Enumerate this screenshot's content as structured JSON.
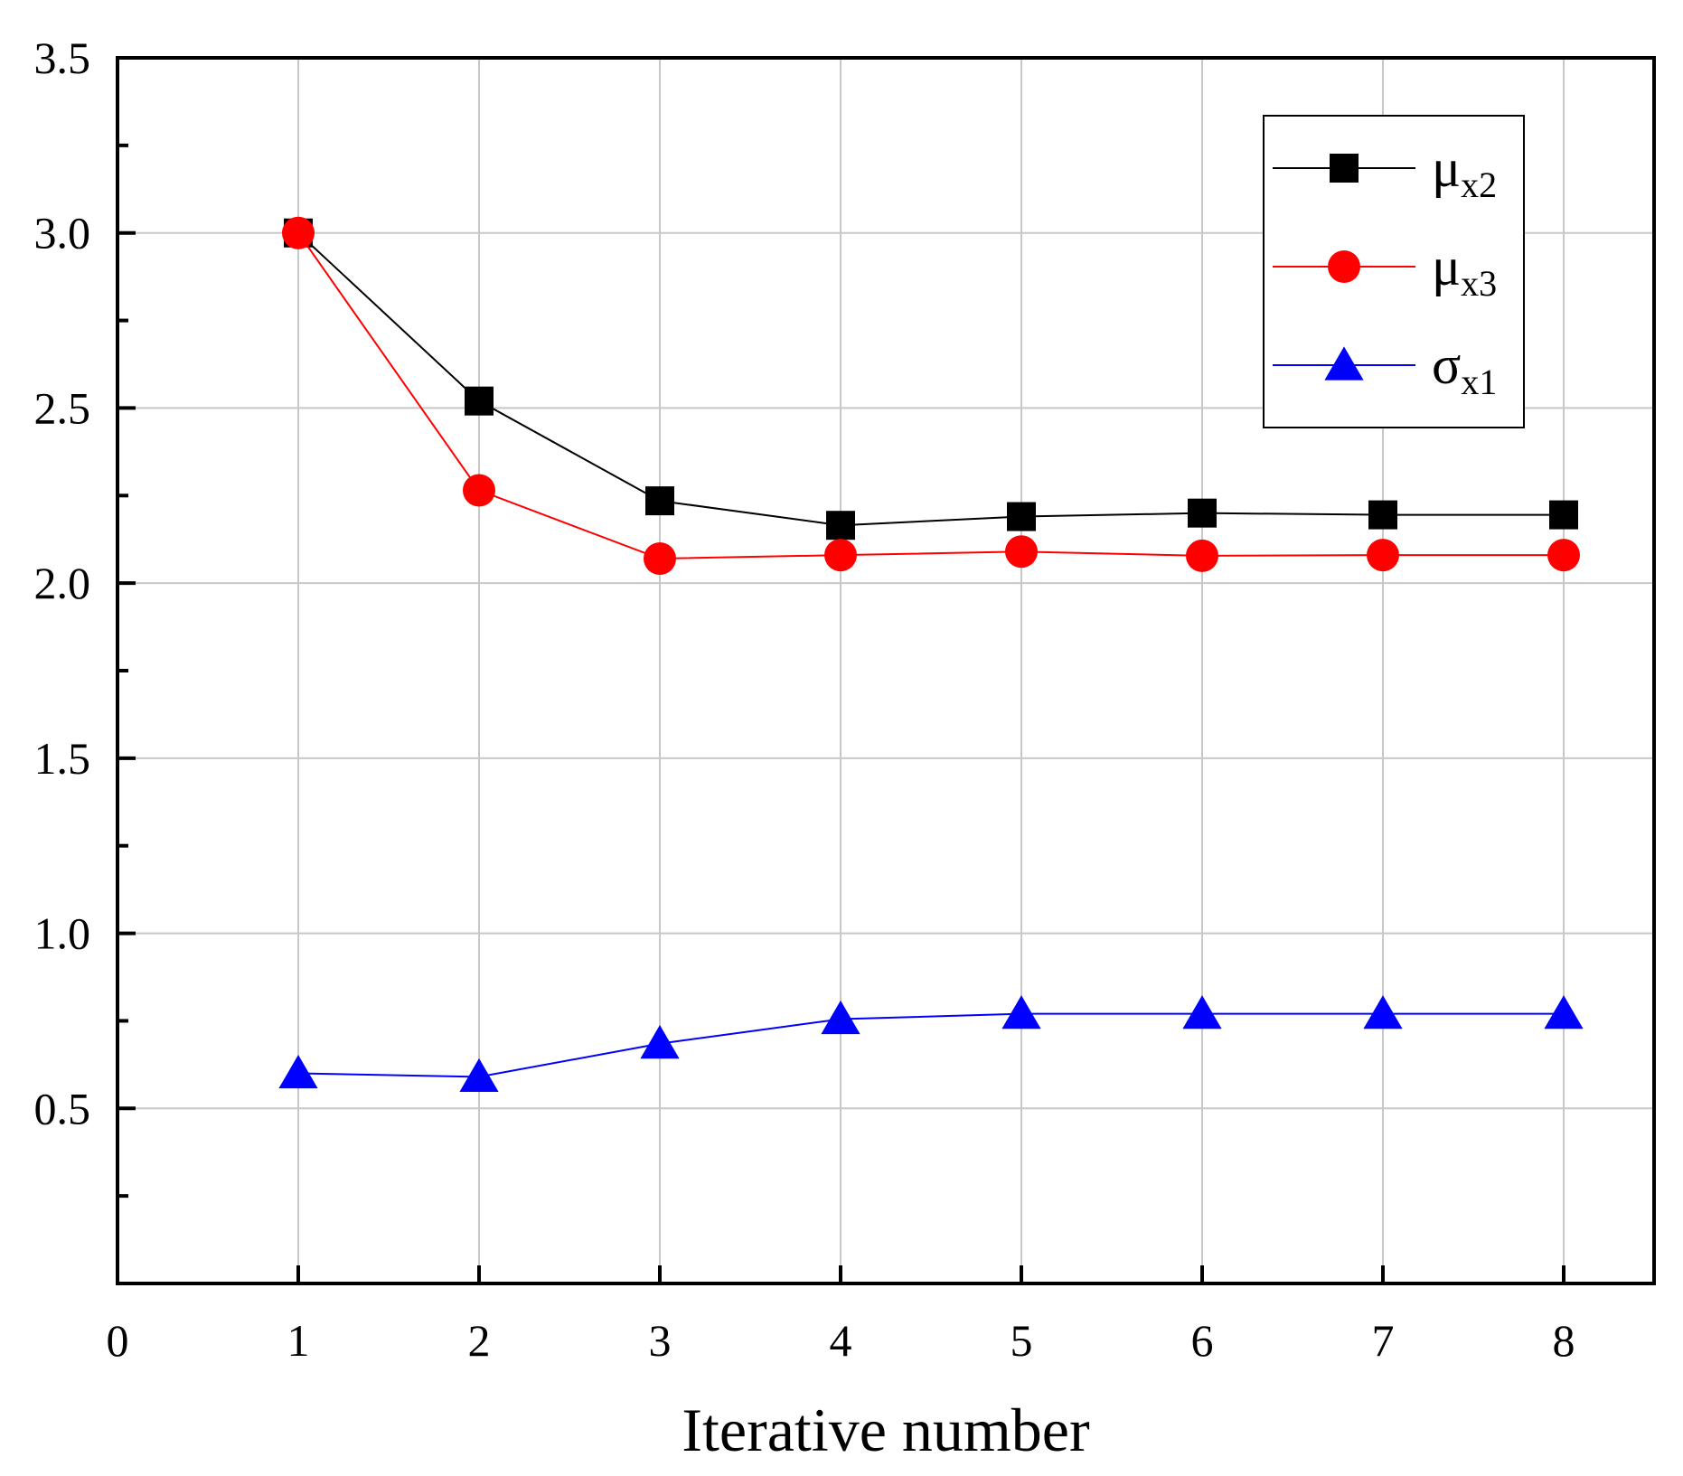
{
  "chart_data": {
    "type": "line",
    "title": "",
    "xlabel": "Iterative number",
    "ylabel": "",
    "xlim": [
      0,
      8.5
    ],
    "ylim": [
      0.0,
      3.5
    ],
    "x_ticks": [
      0,
      1,
      2,
      3,
      4,
      5,
      6,
      7,
      8
    ],
    "x_tick_labels": [
      "0",
      "1",
      "2",
      "3",
      "4",
      "5",
      "6",
      "7",
      "8"
    ],
    "y_ticks": [
      0.5,
      1.0,
      1.5,
      2.0,
      2.5,
      3.0,
      3.5
    ],
    "y_tick_labels": [
      "0.5",
      "1.0",
      "1.5",
      "2.0",
      "2.5",
      "3.0",
      "3.5"
    ],
    "y_minor_ticks": [
      0.25,
      0.75,
      1.25,
      1.75,
      2.25,
      2.75,
      3.25
    ],
    "grid": true,
    "legend_position": "top-right",
    "x": [
      1,
      2,
      3,
      4,
      5,
      6,
      7,
      8
    ],
    "series": [
      {
        "name": "μx2",
        "symbol": "μ",
        "subscript": "x2",
        "color": "#000000",
        "marker": "square",
        "values": [
          3.0,
          2.52,
          2.235,
          2.165,
          2.19,
          2.2,
          2.195,
          2.195
        ]
      },
      {
        "name": "μx3",
        "symbol": "μ",
        "subscript": "x3",
        "color": "#ff0000",
        "marker": "circle",
        "values": [
          3.0,
          2.265,
          2.07,
          2.08,
          2.09,
          2.078,
          2.08,
          2.08
        ]
      },
      {
        "name": "σx1",
        "symbol": "σ",
        "subscript": "x1",
        "color": "#0000ff",
        "marker": "triangle",
        "values": [
          0.6,
          0.59,
          0.685,
          0.755,
          0.77,
          0.77,
          0.77,
          0.77
        ]
      }
    ]
  }
}
